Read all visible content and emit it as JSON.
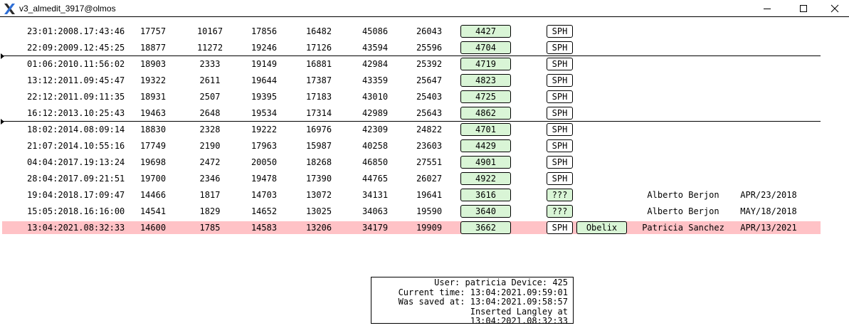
{
  "window": {
    "title": "v3_almedit_3917@olmos",
    "icon": "x-logo-icon",
    "controls": {
      "minimize": "minimize-icon",
      "maximize": "maximize-icon",
      "close": "close-icon"
    }
  },
  "columns": [
    "date",
    "n1",
    "n2",
    "n3",
    "n4",
    "n5",
    "n6",
    "value",
    "type",
    "tag",
    "user",
    "user_date"
  ],
  "rows": [
    {
      "date": "23:01:2008.17:43:46",
      "n1": "17757",
      "n2": "10167",
      "n3": "17856",
      "n4": "16482",
      "n5": "45086",
      "n6": "26043",
      "value": "4427",
      "type": "SPH",
      "tag": "",
      "user": "",
      "user_date": ""
    },
    {
      "date": "22:09:2009.12:45:25",
      "n1": "18877",
      "n2": "11272",
      "n3": "19246",
      "n4": "17126",
      "n5": "43594",
      "n6": "25596",
      "value": "4704",
      "type": "SPH",
      "tag": "",
      "user": "",
      "user_date": ""
    },
    {
      "date": "01:06:2010.11:56:02",
      "n1": "18903",
      "n2": "2333",
      "n3": "19149",
      "n4": "16881",
      "n5": "42984",
      "n6": "25392",
      "value": "4719",
      "type": "SPH",
      "tag": "",
      "user": "",
      "user_date": ""
    },
    {
      "date": "13:12:2011.09:45:47",
      "n1": "19322",
      "n2": "2611",
      "n3": "19644",
      "n4": "17387",
      "n5": "43359",
      "n6": "25647",
      "value": "4823",
      "type": "SPH",
      "tag": "",
      "user": "",
      "user_date": ""
    },
    {
      "date": "22:12:2011.09:11:35",
      "n1": "18931",
      "n2": "2507",
      "n3": "19395",
      "n4": "17183",
      "n5": "43010",
      "n6": "25403",
      "value": "4725",
      "type": "SPH",
      "tag": "",
      "user": "",
      "user_date": ""
    },
    {
      "date": "16:12:2013.10:25:43",
      "n1": "19463",
      "n2": "2648",
      "n3": "19534",
      "n4": "17314",
      "n5": "42989",
      "n6": "25643",
      "value": "4862",
      "type": "SPH",
      "tag": "",
      "user": "",
      "user_date": ""
    },
    {
      "date": "18:02:2014.08:09:14",
      "n1": "18830",
      "n2": "2328",
      "n3": "19222",
      "n4": "16976",
      "n5": "42309",
      "n6": "24822",
      "value": "4701",
      "type": "SPH",
      "tag": "",
      "user": "",
      "user_date": ""
    },
    {
      "date": "21:07:2014.10:55:16",
      "n1": "17749",
      "n2": "2190",
      "n3": "17963",
      "n4": "15987",
      "n5": "40258",
      "n6": "23603",
      "value": "4429",
      "type": "SPH",
      "tag": "",
      "user": "",
      "user_date": ""
    },
    {
      "date": "04:04:2017.19:13:24",
      "n1": "19698",
      "n2": "2472",
      "n3": "20050",
      "n4": "18268",
      "n5": "46850",
      "n6": "27551",
      "value": "4901",
      "type": "SPH",
      "tag": "",
      "user": "",
      "user_date": ""
    },
    {
      "date": "28:04:2017.09:21:51",
      "n1": "19700",
      "n2": "2346",
      "n3": "19478",
      "n4": "17390",
      "n5": "44765",
      "n6": "26027",
      "value": "4922",
      "type": "SPH",
      "tag": "",
      "user": "",
      "user_date": ""
    },
    {
      "date": "19:04:2018.17:09:47",
      "n1": "14466",
      "n2": "1817",
      "n3": "14703",
      "n4": "13072",
      "n5": "34131",
      "n6": "19641",
      "value": "3616",
      "type": "???",
      "tag": "",
      "user": "Alberto Berjon",
      "user_date": "APR/23/2018"
    },
    {
      "date": "15:05:2018.16:16:00",
      "n1": "14541",
      "n2": "1829",
      "n3": "14652",
      "n4": "13025",
      "n5": "34063",
      "n6": "19590",
      "value": "3640",
      "type": "???",
      "tag": "",
      "user": "Alberto Berjon",
      "user_date": "MAY/18/2018"
    },
    {
      "date": "13:04:2021.08:32:33",
      "n1": "14600",
      "n2": "1785",
      "n3": "14583",
      "n4": "13206",
      "n5": "34179",
      "n6": "19909",
      "value": "3662",
      "type": "SPH",
      "tag": "Obelix",
      "user": "Patricia Sanchez",
      "user_date": "APR/13/2021",
      "selected": true
    }
  ],
  "status": {
    "line1": "User: patricia Device: 425",
    "line2": "Current time: 13:04:2021.09:59:01",
    "line3": "Was saved at: 13:04:2021.09:58:57",
    "line4": "Inserted Langley at 13:04:2021.08:32:33"
  },
  "colors": {
    "value_button_bg": "#d9f5d6",
    "selected_row_bg": "#ffc2c6",
    "border": "#000000"
  }
}
